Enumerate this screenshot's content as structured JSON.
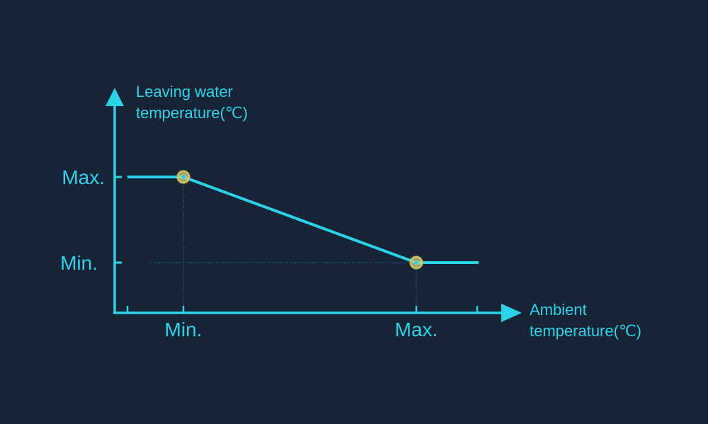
{
  "colors": {
    "background": "#172436",
    "accent": "#2ad3ea",
    "marker": "#d6cc6a"
  },
  "chart_data": {
    "type": "line",
    "title": "",
    "xlabel": [
      "Ambient",
      "temperature(℃)"
    ],
    "ylabel": [
      "Leaving water",
      "temperature(℃)"
    ],
    "x_ticks": [
      "Min.",
      "Max."
    ],
    "y_ticks": [
      "Max.",
      "Min."
    ],
    "series": [
      {
        "points": [
          {
            "x": "below Min.",
            "y": "Max."
          },
          {
            "x": "Min.",
            "y": "Max."
          },
          {
            "x": "Max.",
            "y": "Min."
          },
          {
            "x": "above Max.",
            "y": "Min."
          }
        ]
      }
    ],
    "highlighted_points": [
      {
        "x": "Min.",
        "y": "Max."
      },
      {
        "x": "Max.",
        "y": "Min."
      }
    ],
    "grid": false,
    "legend": "none"
  }
}
